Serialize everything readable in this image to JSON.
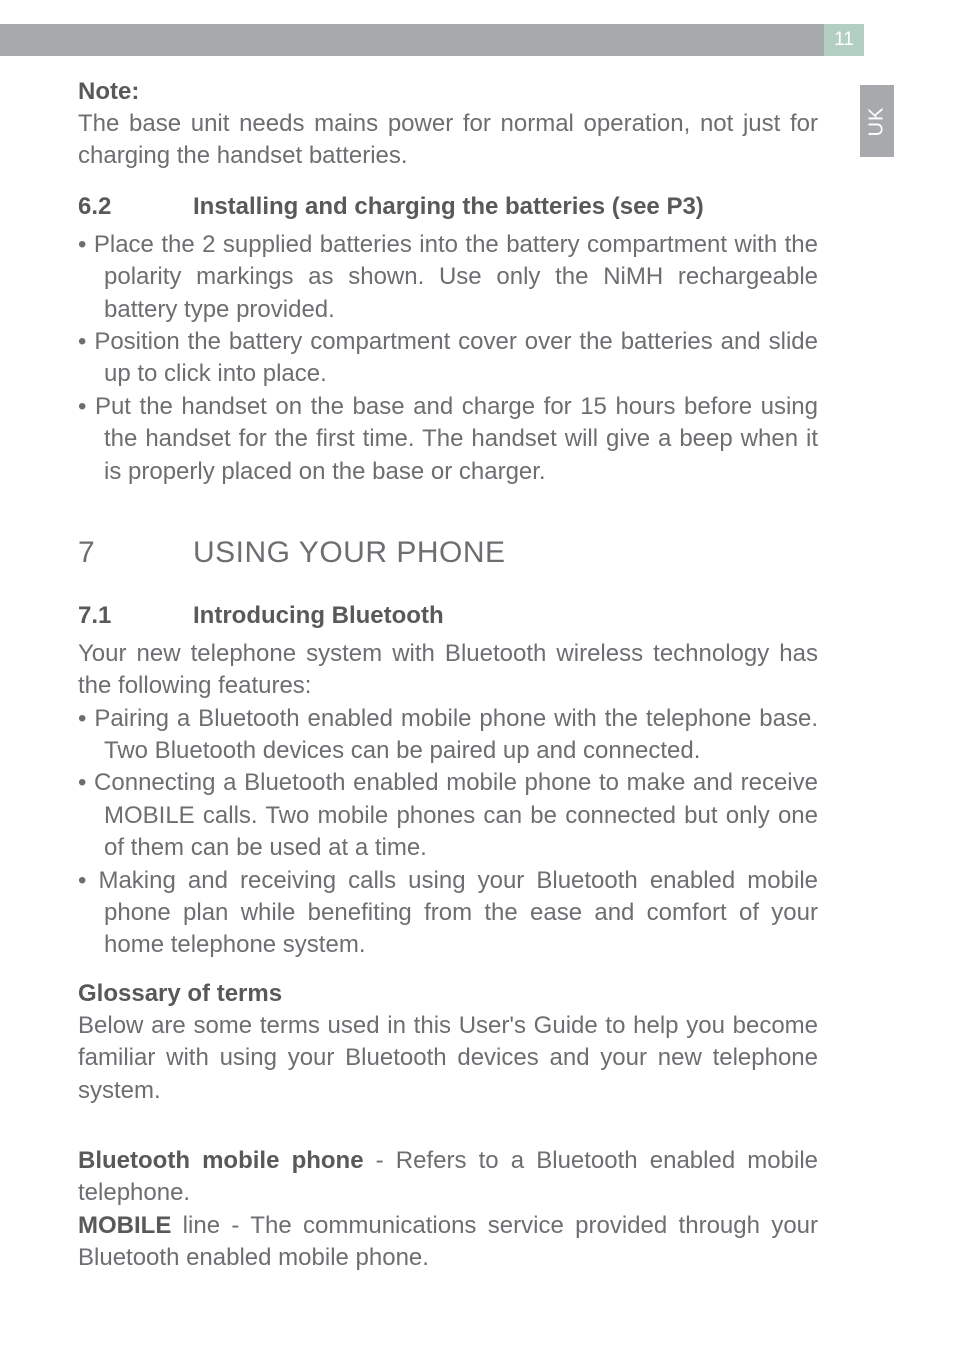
{
  "page": {
    "number": "11",
    "side_tab": "UK",
    "colors": {
      "top_bar": "#a7a9ac",
      "page_box": "#b3cfc4",
      "side_tab": "#a7a9ac",
      "body_text": "#6d6e71",
      "bold_text": "#58595b",
      "background": "#ffffff"
    }
  },
  "note": {
    "label": "Note:",
    "text": "The base unit needs mains power for normal operation, not just for charging the handset batteries."
  },
  "section_6_2": {
    "num": "6.2",
    "title": "Installing and charging the batteries (see P3)",
    "bullets": [
      "Place the 2 supplied batteries into the battery compartment with the polarity markings as shown. Use only the NiMH rechargeable battery type provided.",
      "Position the battery compartment cover over the batteries and slide up to click into place.",
      "Put the handset on the base and charge for 15 hours before using the handset for the first time. The handset will give a beep when it is properly placed on the base or charger."
    ]
  },
  "section_7": {
    "num": "7",
    "title": "USING YOUR PHONE"
  },
  "section_7_1": {
    "num": "7.1",
    "title": "Introducing Bluetooth",
    "intro": "Your new telephone system with Bluetooth wireless technology has the following features:",
    "bullets": [
      "Pairing a Bluetooth enabled mobile phone with the telephone base. Two Bluetooth devices can be paired up and connected.",
      "Connecting a Bluetooth enabled mobile phone to make and receive MOBILE calls. Two mobile phones can be connected but only one of them can be used at a time.",
      "Making and receiving calls using your Bluetooth enabled mobile phone plan while benefiting from the ease and comfort of your home telephone system."
    ]
  },
  "glossary": {
    "heading": "Glossary of terms",
    "intro": "Below are some terms used in this User's Guide to help you become familiar with using your Bluetooth devices and your new telephone system.",
    "defs": {
      "bt_label": "Bluetooth mobile phone",
      "bt_text": " - Refers to a Bluetooth enabled mobile telephone.",
      "mobile_label": "MOBILE",
      "mobile_text": " line - The communications service provided through your Bluetooth enabled mobile phone."
    }
  }
}
